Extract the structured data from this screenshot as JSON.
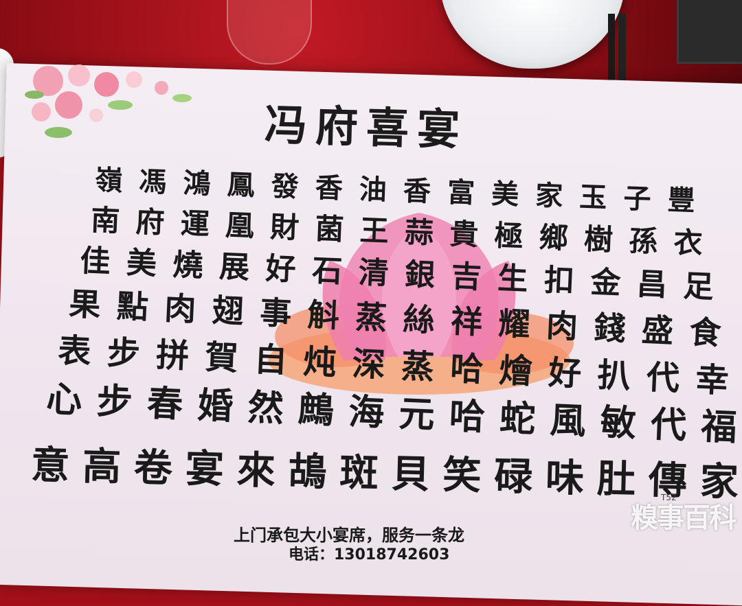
{
  "title": "冯府喜宴",
  "menu_rows": [
    [
      "嶺",
      "馮",
      "鴻",
      "鳳",
      "發",
      "香",
      "油",
      "香",
      "富",
      "美",
      "家",
      "玉",
      "子",
      "豐"
    ],
    [
      "南",
      "府",
      "運",
      "凰",
      "財",
      "菌",
      "王",
      "蒜",
      "貴",
      "極",
      "鄉",
      "樹",
      "孫",
      "衣"
    ],
    [
      "佳",
      "美",
      "燒",
      "展",
      "好",
      "石",
      "清",
      "銀",
      "吉",
      "生",
      "扣",
      "金",
      "昌",
      "足"
    ],
    [
      "果",
      "點",
      "肉",
      "翅",
      "事",
      "斛",
      "蒸",
      "絲",
      "祥",
      "耀",
      "肉",
      "錢",
      "盛",
      "食"
    ],
    [
      "表",
      "步",
      "拼",
      "賀",
      "自",
      "炖",
      "深",
      "蒸",
      "哈",
      "燴",
      "好",
      "扒",
      "代",
      "幸"
    ],
    [
      "心",
      "步",
      "春",
      "婚",
      "然",
      "鷓",
      "海",
      "元",
      "哈",
      "蛇",
      "風",
      "敏",
      "代",
      "福"
    ],
    [
      "意",
      "高",
      "卷",
      "宴",
      "來",
      "鴣",
      "斑",
      "貝",
      "笑",
      "碌",
      "味",
      "肚",
      "傳",
      "家"
    ]
  ],
  "footer_text": "上门承包大小宴席，服务一条龙",
  "phone_text": "电话：13018742603",
  "small_note": "T52",
  "watermark": "糗事百科",
  "colors": {
    "tablecloth": "#a3101a",
    "card": "#f2e9f1",
    "lotus_pink": "#f08cb8",
    "lotus_orange": "#f6a678",
    "ink": "#1a1a1a"
  }
}
